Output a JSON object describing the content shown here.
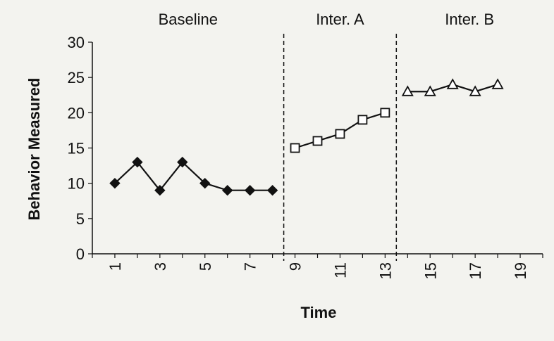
{
  "chart_data": {
    "type": "line",
    "xlabel": "Time",
    "ylabel": "Behavior Measured",
    "ylim": [
      0,
      30
    ],
    "yticks": [
      0,
      5,
      10,
      15,
      20,
      25,
      30
    ],
    "xlim": [
      0,
      20
    ],
    "xtick_labels": [
      "1",
      "3",
      "5",
      "7",
      "9",
      "11",
      "13",
      "15",
      "17",
      "19"
    ],
    "xtick_values": [
      1,
      3,
      5,
      7,
      9,
      11,
      13,
      15,
      17,
      19
    ],
    "phases": [
      {
        "label": "Baseline",
        "start": 0,
        "end": 8.5
      },
      {
        "label": "Inter. A",
        "start": 8.5,
        "end": 13.5
      },
      {
        "label": "Inter. B",
        "start": 13.5,
        "end": 20
      }
    ],
    "phase_dividers": [
      8.5,
      13.5
    ],
    "series": [
      {
        "marker": "diamond",
        "x": [
          1,
          2,
          3,
          4,
          5,
          6,
          7,
          8
        ],
        "values": [
          10,
          13,
          9,
          13,
          10,
          9,
          9,
          9
        ]
      },
      {
        "marker": "square",
        "x": [
          9,
          10,
          11,
          12,
          13
        ],
        "values": [
          15,
          16,
          17,
          19,
          20
        ]
      },
      {
        "marker": "triangle",
        "x": [
          14,
          15,
          16,
          17,
          18
        ],
        "values": [
          23,
          23,
          24,
          23,
          24
        ]
      }
    ],
    "colors": {
      "background": "#f3f3ef",
      "ink": "#111111",
      "marker_open": "#ffffff"
    }
  }
}
